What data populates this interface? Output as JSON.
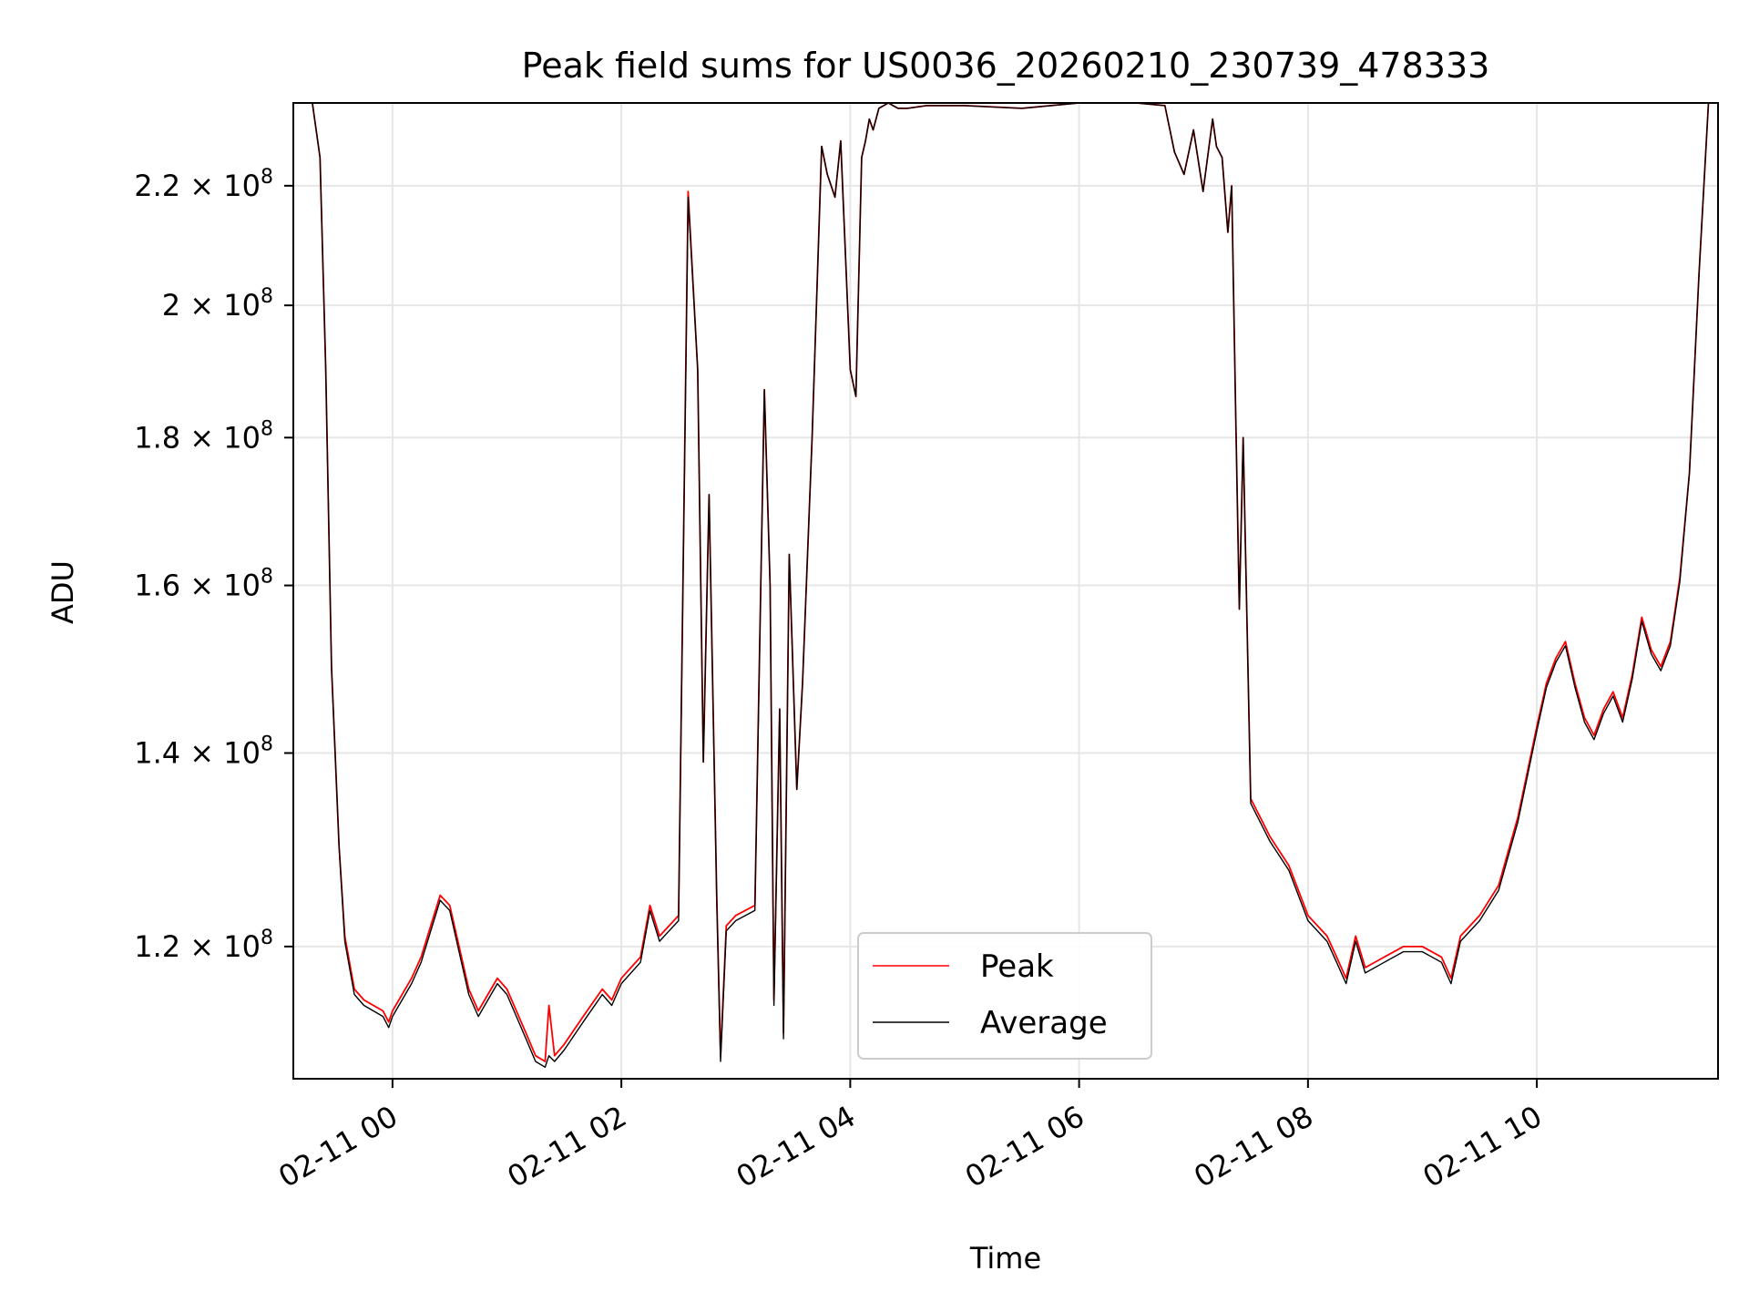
{
  "chart_data": {
    "type": "line",
    "title": "Peak field sums for US0036_20260210_230739_478333",
    "xlabel": "Time",
    "ylabel": "ADU",
    "yscale": "log",
    "grid": true,
    "legend_position": "lower center",
    "x_ticks": [
      "02-11 00",
      "02-11 02",
      "02-11 04",
      "02-11 06",
      "02-11 08",
      "02-11 10"
    ],
    "y_ticks": [
      {
        "value": 120000000,
        "mantissa": "1.2",
        "base": "10",
        "exp": "8"
      },
      {
        "value": 140000000,
        "mantissa": "1.4",
        "base": "10",
        "exp": "8"
      },
      {
        "value": 160000000,
        "mantissa": "1.6",
        "base": "10",
        "exp": "8"
      },
      {
        "value": 180000000,
        "mantissa": "1.8",
        "base": "10",
        "exp": "8"
      },
      {
        "value": 200000000,
        "mantissa": "2",
        "base": "10",
        "exp": "8"
      },
      {
        "value": 220000000,
        "mantissa": "2.2",
        "base": "10",
        "exp": "8"
      }
    ],
    "xlim": [
      "2026-02-10 23:08",
      "2026-02-11 11:35"
    ],
    "ylim": [
      108000000,
      235000000
    ],
    "series": [
      {
        "name": "Peak",
        "color": "#ff0000",
        "x": [
          "2026-02-10 23:08",
          "2026-02-10 23:18",
          "2026-02-10 23:22",
          "2026-02-10 23:25",
          "2026-02-10 23:28",
          "2026-02-10 23:32",
          "2026-02-10 23:35",
          "2026-02-10 23:40",
          "2026-02-10 23:45",
          "2026-02-10 23:55",
          "2026-02-10 23:58",
          "2026-02-11 00:00",
          "2026-02-11 00:10",
          "2026-02-11 00:15",
          "2026-02-11 00:25",
          "2026-02-11 00:30",
          "2026-02-11 00:40",
          "2026-02-11 00:45",
          "2026-02-11 00:50",
          "2026-02-11 00:55",
          "2026-02-11 01:00",
          "2026-02-11 01:10",
          "2026-02-11 01:15",
          "2026-02-11 01:20",
          "2026-02-11 01:22",
          "2026-02-11 01:25",
          "2026-02-11 01:30",
          "2026-02-11 01:40",
          "2026-02-11 01:50",
          "2026-02-11 01:55",
          "2026-02-11 02:00",
          "2026-02-11 02:10",
          "2026-02-11 02:15",
          "2026-02-11 02:20",
          "2026-02-11 02:25",
          "2026-02-11 02:30",
          "2026-02-11 02:35",
          "2026-02-11 02:40",
          "2026-02-11 02:43",
          "2026-02-11 02:46",
          "2026-02-11 02:50",
          "2026-02-11 02:52",
          "2026-02-11 02:55",
          "2026-02-11 03:00",
          "2026-02-11 03:10",
          "2026-02-11 03:15",
          "2026-02-11 03:18",
          "2026-02-11 03:20",
          "2026-02-11 03:23",
          "2026-02-11 03:25",
          "2026-02-11 03:28",
          "2026-02-11 03:32",
          "2026-02-11 03:35",
          "2026-02-11 03:40",
          "2026-02-11 03:45",
          "2026-02-11 03:48",
          "2026-02-11 03:52",
          "2026-02-11 03:55",
          "2026-02-11 04:00",
          "2026-02-11 04:03",
          "2026-02-11 04:06",
          "2026-02-11 04:08",
          "2026-02-11 04:10",
          "2026-02-11 04:12",
          "2026-02-11 04:15",
          "2026-02-11 04:20",
          "2026-02-11 04:25",
          "2026-02-11 04:30",
          "2026-02-11 04:40",
          "2026-02-11 05:00",
          "2026-02-11 05:30",
          "2026-02-11 06:00",
          "2026-02-11 06:30",
          "2026-02-11 06:45",
          "2026-02-11 06:50",
          "2026-02-11 06:55",
          "2026-02-11 07:00",
          "2026-02-11 07:05",
          "2026-02-11 07:10",
          "2026-02-11 07:12",
          "2026-02-11 07:15",
          "2026-02-11 07:18",
          "2026-02-11 07:20",
          "2026-02-11 07:22",
          "2026-02-11 07:24",
          "2026-02-11 07:26",
          "2026-02-11 07:30",
          "2026-02-11 07:35",
          "2026-02-11 07:40",
          "2026-02-11 07:50",
          "2026-02-11 08:00",
          "2026-02-11 08:10",
          "2026-02-11 08:15",
          "2026-02-11 08:20",
          "2026-02-11 08:25",
          "2026-02-11 08:30",
          "2026-02-11 08:40",
          "2026-02-11 08:50",
          "2026-02-11 09:00",
          "2026-02-11 09:10",
          "2026-02-11 09:15",
          "2026-02-11 09:20",
          "2026-02-11 09:30",
          "2026-02-11 09:40",
          "2026-02-11 09:50",
          "2026-02-11 10:00",
          "2026-02-11 10:05",
          "2026-02-11 10:10",
          "2026-02-11 10:15",
          "2026-02-11 10:20",
          "2026-02-11 10:25",
          "2026-02-11 10:30",
          "2026-02-11 10:35",
          "2026-02-11 10:40",
          "2026-02-11 10:45",
          "2026-02-11 10:50",
          "2026-02-11 10:55",
          "2026-02-11 11:00",
          "2026-02-11 11:05",
          "2026-02-11 11:10",
          "2026-02-11 11:15",
          "2026-02-11 11:20",
          "2026-02-11 11:25",
          "2026-02-11 11:30",
          "2026-02-11 11:35"
        ],
        "y": [
          235000000,
          235000000,
          225000000,
          190000000,
          150000000,
          130000000,
          121000000,
          116000000,
          115000000,
          114000000,
          113000000,
          114000000,
          117000000,
          119000000,
          125000000,
          124000000,
          116000000,
          114000000,
          115500000,
          117000000,
          116000000,
          112000000,
          110000000,
          109500000,
          114500000,
          110000000,
          111000000,
          113500000,
          116000000,
          115000000,
          117000000,
          119000000,
          124000000,
          121000000,
          122000000,
          123000000,
          219000000,
          190000000,
          139000000,
          172000000,
          125000000,
          110000000,
          122000000,
          123000000,
          124000000,
          187000000,
          160000000,
          115000000,
          145000000,
          112000000,
          164000000,
          136000000,
          148000000,
          180000000,
          227000000,
          222000000,
          218000000,
          228000000,
          190000000,
          186000000,
          225000000,
          228000000,
          232000000,
          230000000,
          234000000,
          235000000,
          234000000,
          234000000,
          234500000,
          234500000,
          234000000,
          235000000,
          235000000,
          234500000,
          226000000,
          222000000,
          230000000,
          219000000,
          232000000,
          227000000,
          225000000,
          212000000,
          220000000,
          185000000,
          157000000,
          180000000,
          135000000,
          133000000,
          131000000,
          128000000,
          123000000,
          121000000,
          119000000,
          117000000,
          121000000,
          118000000,
          119000000,
          120000000,
          120000000,
          119000000,
          117000000,
          121000000,
          123000000,
          126000000,
          133000000,
          143000000,
          148000000,
          151000000,
          153000000,
          148000000,
          144000000,
          142000000,
          145000000,
          147000000,
          144000000,
          149000000,
          156000000,
          152000000,
          150000000,
          153000000,
          161000000,
          175000000,
          205000000,
          235000000,
          235000000
        ]
      },
      {
        "name": "Average",
        "color": "#000000",
        "x": [
          "2026-02-10 23:08",
          "2026-02-10 23:18",
          "2026-02-10 23:22",
          "2026-02-10 23:25",
          "2026-02-10 23:28",
          "2026-02-10 23:32",
          "2026-02-10 23:35",
          "2026-02-10 23:40",
          "2026-02-10 23:45",
          "2026-02-10 23:55",
          "2026-02-10 23:58",
          "2026-02-11 00:00",
          "2026-02-11 00:10",
          "2026-02-11 00:15",
          "2026-02-11 00:25",
          "2026-02-11 00:30",
          "2026-02-11 00:40",
          "2026-02-11 00:45",
          "2026-02-11 00:50",
          "2026-02-11 00:55",
          "2026-02-11 01:00",
          "2026-02-11 01:10",
          "2026-02-11 01:15",
          "2026-02-11 01:20",
          "2026-02-11 01:22",
          "2026-02-11 01:25",
          "2026-02-11 01:30",
          "2026-02-11 01:40",
          "2026-02-11 01:50",
          "2026-02-11 01:55",
          "2026-02-11 02:00",
          "2026-02-11 02:10",
          "2026-02-11 02:15",
          "2026-02-11 02:20",
          "2026-02-11 02:25",
          "2026-02-11 02:30",
          "2026-02-11 02:35",
          "2026-02-11 02:40",
          "2026-02-11 02:43",
          "2026-02-11 02:46",
          "2026-02-11 02:50",
          "2026-02-11 02:52",
          "2026-02-11 02:55",
          "2026-02-11 03:00",
          "2026-02-11 03:10",
          "2026-02-11 03:15",
          "2026-02-11 03:18",
          "2026-02-11 03:20",
          "2026-02-11 03:23",
          "2026-02-11 03:25",
          "2026-02-11 03:28",
          "2026-02-11 03:32",
          "2026-02-11 03:35",
          "2026-02-11 03:40",
          "2026-02-11 03:45",
          "2026-02-11 03:48",
          "2026-02-11 03:52",
          "2026-02-11 03:55",
          "2026-02-11 04:00",
          "2026-02-11 04:03",
          "2026-02-11 04:06",
          "2026-02-11 04:08",
          "2026-02-11 04:10",
          "2026-02-11 04:12",
          "2026-02-11 04:15",
          "2026-02-11 04:20",
          "2026-02-11 04:25",
          "2026-02-11 04:30",
          "2026-02-11 04:40",
          "2026-02-11 05:00",
          "2026-02-11 05:30",
          "2026-02-11 06:00",
          "2026-02-11 06:30",
          "2026-02-11 06:45",
          "2026-02-11 06:50",
          "2026-02-11 06:55",
          "2026-02-11 07:00",
          "2026-02-11 07:05",
          "2026-02-11 07:10",
          "2026-02-11 07:12",
          "2026-02-11 07:15",
          "2026-02-11 07:18",
          "2026-02-11 07:20",
          "2026-02-11 07:22",
          "2026-02-11 07:24",
          "2026-02-11 07:26",
          "2026-02-11 07:30",
          "2026-02-11 07:35",
          "2026-02-11 07:40",
          "2026-02-11 07:50",
          "2026-02-11 08:00",
          "2026-02-11 08:10",
          "2026-02-11 08:15",
          "2026-02-11 08:20",
          "2026-02-11 08:25",
          "2026-02-11 08:30",
          "2026-02-11 08:40",
          "2026-02-11 08:50",
          "2026-02-11 09:00",
          "2026-02-11 09:10",
          "2026-02-11 09:15",
          "2026-02-11 09:20",
          "2026-02-11 09:30",
          "2026-02-11 09:40",
          "2026-02-11 09:50",
          "2026-02-11 10:00",
          "2026-02-11 10:05",
          "2026-02-11 10:10",
          "2026-02-11 10:15",
          "2026-02-11 10:20",
          "2026-02-11 10:25",
          "2026-02-11 10:30",
          "2026-02-11 10:35",
          "2026-02-11 10:40",
          "2026-02-11 10:45",
          "2026-02-11 10:50",
          "2026-02-11 10:55",
          "2026-02-11 11:00",
          "2026-02-11 11:05",
          "2026-02-11 11:10",
          "2026-02-11 11:15",
          "2026-02-11 11:20",
          "2026-02-11 11:25",
          "2026-02-11 11:30",
          "2026-02-11 11:35"
        ],
        "y": [
          235000000,
          235000000,
          225000000,
          190000000,
          150000000,
          130000000,
          120500000,
          115500000,
          114500000,
          113500000,
          112500000,
          113500000,
          116500000,
          118500000,
          124500000,
          123500000,
          115500000,
          113500000,
          115000000,
          116500000,
          115500000,
          111500000,
          109500000,
          109000000,
          110000000,
          109500000,
          110500000,
          113000000,
          115500000,
          114500000,
          116500000,
          118500000,
          123500000,
          120500000,
          121500000,
          122500000,
          218000000,
          190000000,
          139000000,
          172000000,
          124500000,
          109500000,
          121500000,
          122500000,
          123500000,
          187000000,
          160000000,
          114500000,
          145000000,
          111500000,
          164000000,
          136000000,
          148000000,
          180000000,
          227000000,
          222000000,
          218000000,
          228000000,
          190000000,
          186000000,
          225000000,
          228000000,
          232000000,
          230000000,
          234000000,
          235000000,
          234000000,
          234000000,
          234500000,
          234500000,
          234000000,
          235000000,
          235000000,
          234500000,
          226000000,
          222000000,
          230000000,
          219000000,
          232000000,
          227000000,
          225000000,
          212000000,
          220000000,
          185000000,
          157000000,
          180000000,
          134500000,
          132500000,
          130500000,
          127500000,
          122500000,
          120500000,
          118500000,
          116500000,
          120500000,
          117500000,
          118500000,
          119500000,
          119500000,
          118500000,
          116500000,
          120500000,
          122500000,
          125500000,
          132500000,
          142500000,
          147500000,
          150500000,
          152500000,
          147500000,
          143500000,
          141500000,
          144500000,
          146500000,
          143500000,
          148500000,
          155500000,
          151500000,
          149500000,
          152500000,
          160500000,
          175000000,
          205000000,
          235000000,
          235000000
        ]
      }
    ]
  }
}
